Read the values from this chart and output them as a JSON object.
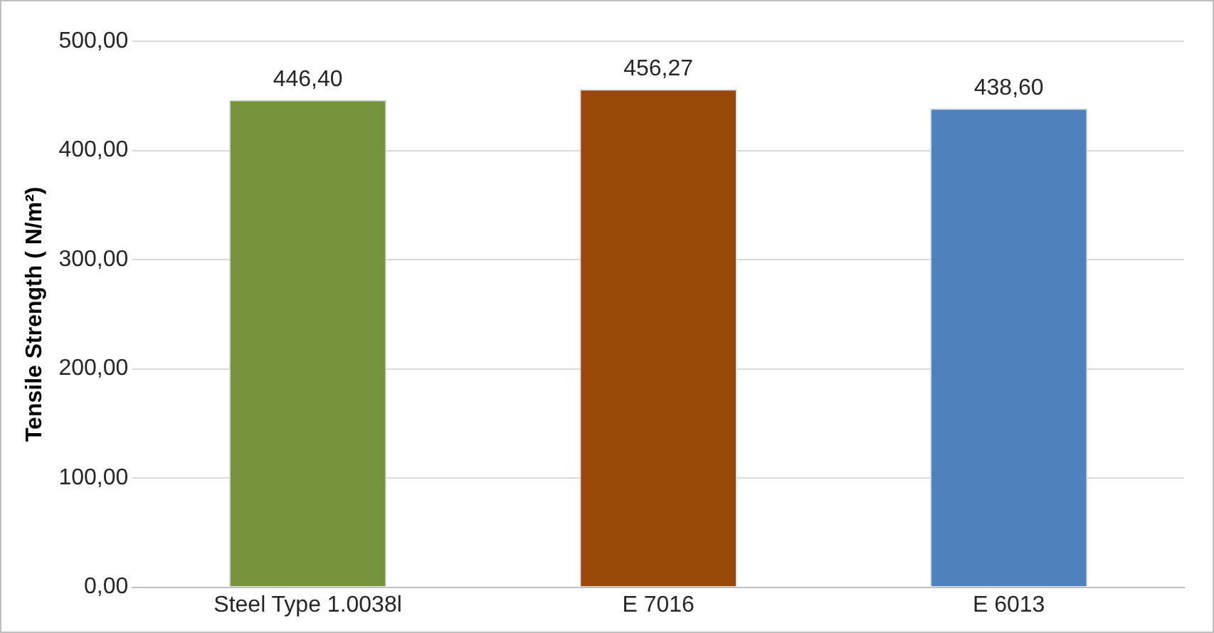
{
  "chart_data": {
    "type": "bar",
    "ylabel": "Tensile Strength ( N/m²)",
    "categories": [
      "Steel Type 1.0038l",
      "E 7016",
      "E 6013"
    ],
    "values": [
      446.4,
      456.27,
      438.6
    ],
    "colors": [
      "#77933c",
      "#984807",
      "#4f81bd"
    ],
    "value_labels": [
      "446,40",
      "456,27",
      "438,60"
    ],
    "ylim": [
      0,
      500
    ],
    "yticks": [
      {
        "value": 0,
        "label": "0,00"
      },
      {
        "value": 100,
        "label": "100,00"
      },
      {
        "value": 200,
        "label": "200,00"
      },
      {
        "value": 300,
        "label": "300,00"
      },
      {
        "value": 400,
        "label": "400,00"
      },
      {
        "value": 500,
        "label": "500,00"
      }
    ],
    "grid": "y",
    "legend": false
  }
}
